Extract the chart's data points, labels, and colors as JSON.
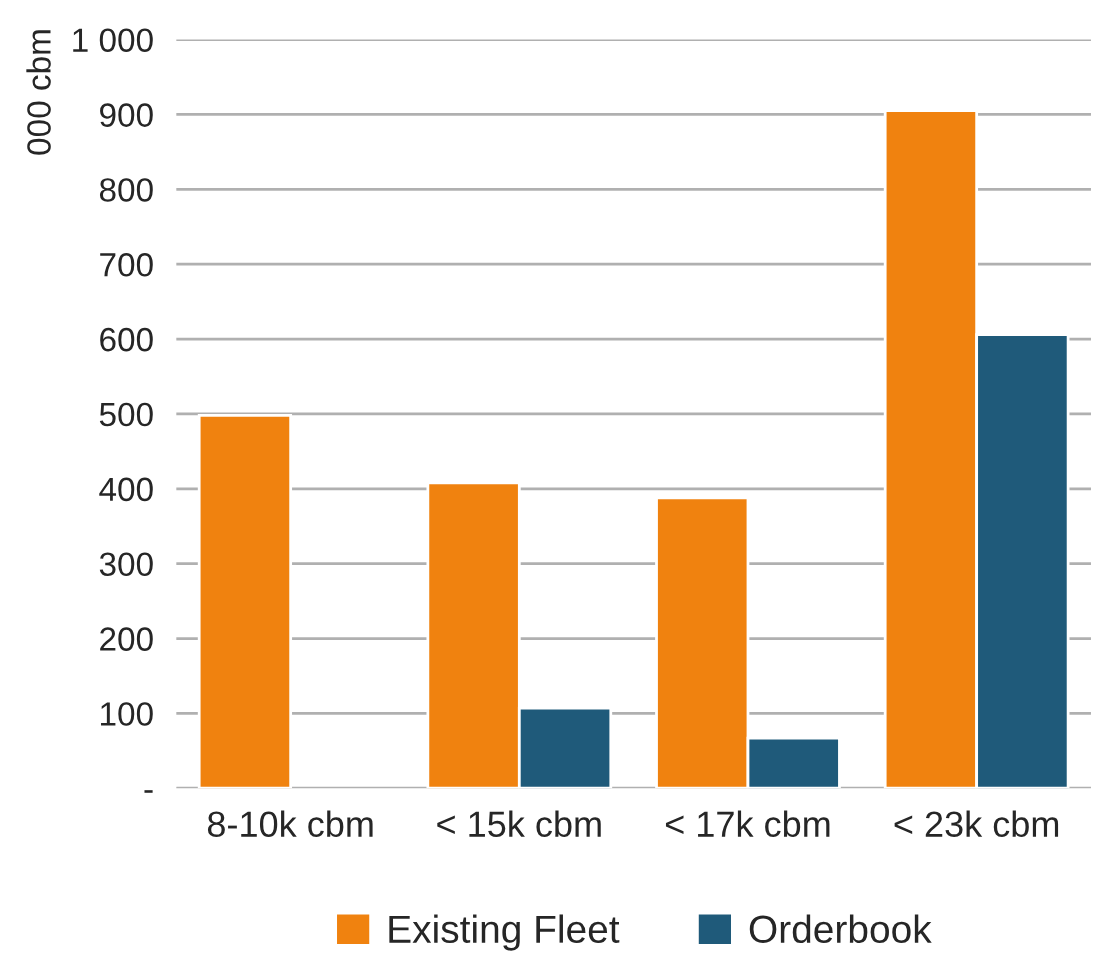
{
  "chart_data": {
    "type": "bar",
    "ylabel": "000 cbm",
    "categories": [
      "8-10k cbm",
      "< 15k cbm",
      "< 17k cbm",
      "< 23k cbm"
    ],
    "series": [
      {
        "name": "Existing Fleet",
        "color": "#f0820f",
        "values": [
          498,
          408,
          388,
          905
        ]
      },
      {
        "name": "Orderbook",
        "color": "#1f5a7a",
        "values": [
          null,
          107,
          67,
          606
        ]
      }
    ],
    "ylim": [
      0,
      1000
    ],
    "yticks": [
      {
        "value": 0,
        "label": "-"
      },
      100,
      200,
      300,
      400,
      500,
      600,
      700,
      800,
      900,
      {
        "value": 1000,
        "label": "1 000"
      }
    ],
    "grid": "y",
    "legend": "bottom"
  }
}
